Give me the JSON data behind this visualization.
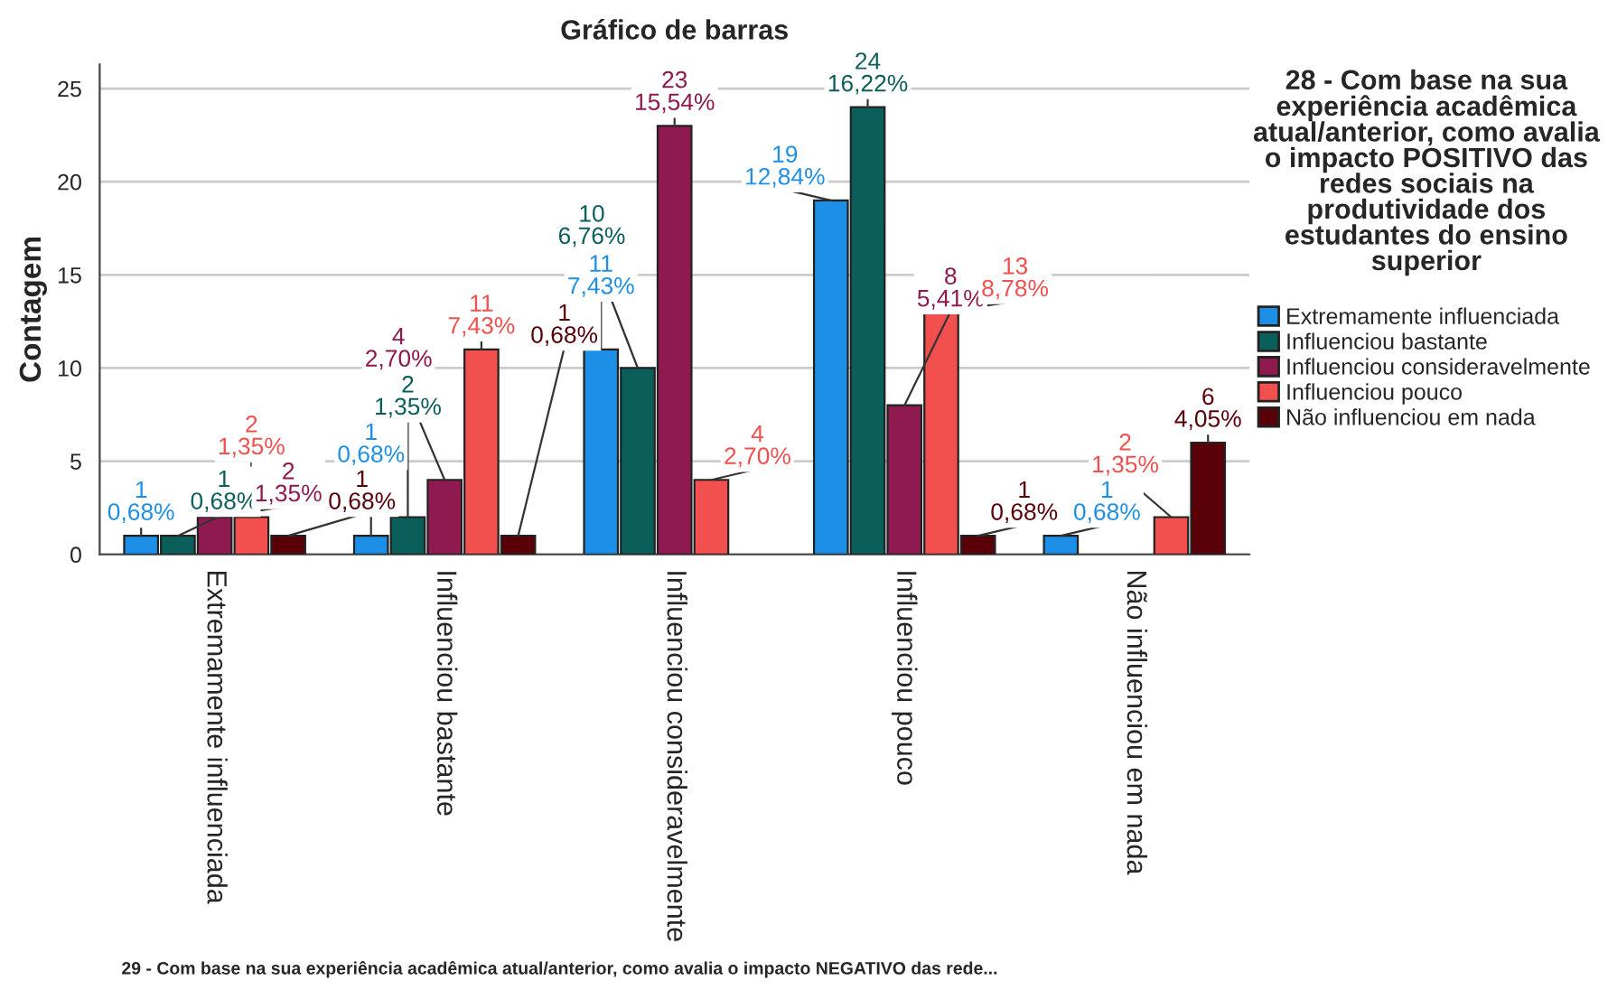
{
  "chart_data": {
    "type": "bar",
    "title": "Gráfico de barras",
    "xlabel": "29 - Com base na sua experiência acadêmica atual/anterior, como avalia o impacto NEGATIVO das rede...",
    "ylabel": "Contagem",
    "legend_title": "28 - Com base na sua experiência acadêmica atual/anterior, como avalia o impacto POSITIVO das redes sociais na produtividade dos estudantes do ensino superior",
    "categories": [
      "Extremamente influenciada",
      "Influenciou bastante",
      "Influenciou consideravelmente",
      "Influenciou pouco",
      "Não influenciou em nada"
    ],
    "series": [
      {
        "name": "Extremamente influenciada",
        "color": "#1e8fe6",
        "values": [
          1,
          1,
          11,
          19,
          1
        ],
        "value_labels": [
          "1\n0,68%",
          "1\n0,68%",
          "11\n7,43%",
          "19\n12,84%",
          "1\n0,68%"
        ]
      },
      {
        "name": "Influenciou bastante",
        "color": "#0b5f5a",
        "values": [
          1,
          2,
          10,
          24,
          null
        ],
        "value_labels": [
          "1\n0,68%",
          "2\n1,35%",
          "10\n6,76%",
          "24\n16,22%",
          null
        ]
      },
      {
        "name": "Influenciou consideravelmente",
        "color": "#8e1a50",
        "values": [
          2,
          4,
          23,
          8,
          null
        ],
        "value_labels": [
          "2\n1,35%",
          "4\n2,70%",
          "23\n15,54%",
          "8\n5,41%",
          null
        ]
      },
      {
        "name": "Influenciou pouco",
        "color": "#f24f4f",
        "values": [
          2,
          11,
          4,
          13,
          2
        ],
        "value_labels": [
          "2\n1,35%",
          "11\n7,43%",
          "4\n2,70%",
          "13\n8,78%",
          "2\n1,35%"
        ]
      },
      {
        "name": "Não influenciou em nada",
        "color": "#5a0008",
        "values": [
          1,
          1,
          null,
          1,
          6
        ],
        "value_labels": [
          "1\n0,68%",
          "1\n0,68%",
          null,
          "1\n0,68%",
          "6\n4,05%"
        ]
      }
    ],
    "ylim": [
      0,
      26.3
    ],
    "yticks": [
      0,
      5,
      10,
      15,
      20,
      25
    ],
    "grid": "y",
    "legend": "right"
  }
}
